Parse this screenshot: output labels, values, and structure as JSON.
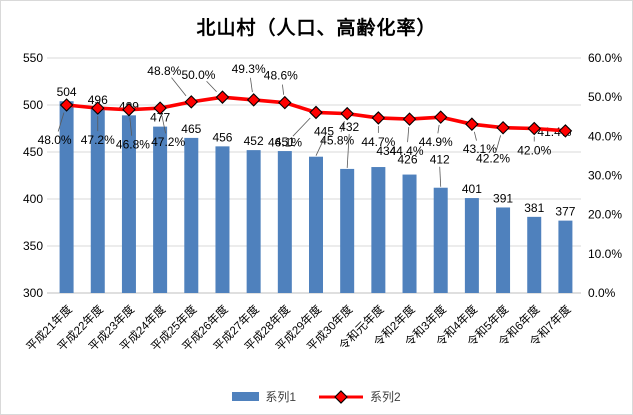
{
  "chart_data": {
    "type": "combo",
    "title": "北山村（人口、高齢化率）",
    "categories": [
      "平成21年度",
      "平成22年度",
      "平成23年度",
      "平成24年度",
      "平成25年度",
      "平成26年度",
      "平成27年度",
      "平成28年度",
      "平成29年度",
      "平成30年度",
      "令和元年度",
      "令和2年度",
      "令和3年度",
      "令和4年度",
      "令和5年度",
      "令和6年度",
      "令和7年度"
    ],
    "series": [
      {
        "name": "系列1",
        "type": "bar",
        "axis": "left",
        "color": "#4F81BD",
        "values": [
          504,
          496,
          489,
          477,
          465,
          456,
          452,
          451,
          445,
          432,
          434,
          426,
          412,
          401,
          391,
          381,
          377
        ]
      },
      {
        "name": "系列2",
        "type": "line",
        "axis": "right",
        "color": "#FF0000",
        "marker": "diamond",
        "marker_stroke": "#000000",
        "values": [
          48.0,
          47.2,
          46.8,
          47.2,
          48.8,
          50.0,
          49.3,
          48.6,
          46.1,
          45.8,
          44.7,
          44.4,
          44.9,
          43.1,
          42.2,
          42.0,
          41.4
        ],
        "labels": [
          "48.0%",
          "47.2%",
          "46.8%",
          "47.2%",
          "48.8%",
          "50.0%",
          "49.3%",
          "48.6%",
          "46.1%",
          "45.8%",
          "44.7%",
          "44.4%",
          "44.9%",
          "43.1%",
          "42.2%",
          "42.0%",
          "41.4%"
        ]
      }
    ],
    "axes": {
      "left": {
        "min": 300,
        "max": 550,
        "step": 50,
        "tick_labels": [
          "550",
          "500",
          "450",
          "400",
          "350",
          "300"
        ]
      },
      "right": {
        "min": 0,
        "max": 60,
        "step": 10,
        "tick_labels": [
          "60.0%",
          "50.0%",
          "40.0%",
          "30.0%",
          "20.0%",
          "10.0%",
          "0.0%"
        ]
      }
    },
    "grid": true,
    "legend_position": "bottom",
    "colors": {
      "grid": "#D9D9D9",
      "axis_line": "#BFBFBF",
      "text": "#000000",
      "leader": "#595959",
      "background": "#FFFFFF",
      "border": "#D9D9D9"
    },
    "label_layout": {
      "line_offsets": [
        [
          -12,
          35,
          1
        ],
        [
          0,
          32,
          1
        ],
        [
          4,
          35,
          1
        ],
        [
          8,
          34,
          1
        ],
        [
          -27,
          -31,
          1
        ],
        [
          -24,
          -22,
          1
        ],
        [
          -5,
          -31,
          1
        ],
        [
          -4,
          -27,
          1
        ],
        [
          -31,
          30,
          1
        ],
        [
          -10,
          27,
          1
        ],
        [
          0,
          24,
          1
        ],
        [
          -3,
          32,
          1
        ],
        [
          -5,
          25,
          1
        ],
        [
          8,
          25,
          1
        ],
        [
          -10,
          31,
          1
        ],
        [
          0,
          22,
          1
        ],
        [
          -11,
          1,
          0
        ]
      ],
      "bar_overrides": {
        "8": [
          8,
          -16,
          1
        ],
        "9": [
          2,
          -33,
          1
        ],
        "10": [
          8,
          -7,
          0
        ],
        "11": [
          -2,
          -6,
          0
        ],
        "12": [
          -1,
          -19,
          1
        ]
      }
    }
  }
}
